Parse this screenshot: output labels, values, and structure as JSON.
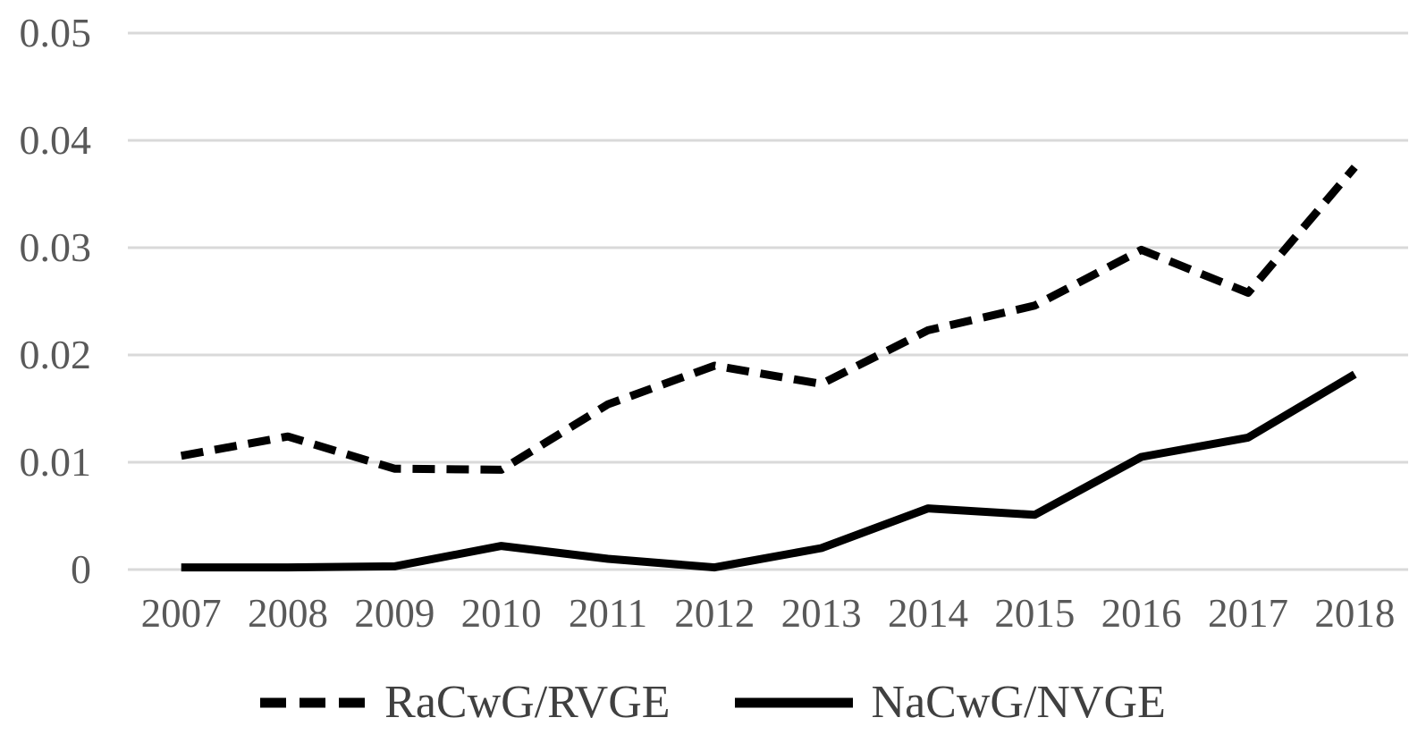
{
  "chart_data": {
    "type": "line",
    "categories": [
      "2007",
      "2008",
      "2009",
      "2010",
      "2011",
      "2012",
      "2013",
      "2014",
      "2015",
      "2016",
      "2017",
      "2018"
    ],
    "series": [
      {
        "name": "RaCwG/RVGE",
        "style": "dashed",
        "values": [
          0.0106,
          0.0124,
          0.0094,
          0.0093,
          0.0154,
          0.019,
          0.0173,
          0.0223,
          0.0246,
          0.0298,
          0.0258,
          0.0375
        ]
      },
      {
        "name": "NaCwG/NVGE",
        "style": "solid",
        "values": [
          0.0002,
          0.0002,
          0.0003,
          0.0022,
          0.001,
          0.0002,
          0.002,
          0.0057,
          0.0051,
          0.0105,
          0.0123,
          0.0182
        ]
      }
    ],
    "yticks": [
      {
        "value": 0.05,
        "label": "0.05"
      },
      {
        "value": 0.04,
        "label": "0.04"
      },
      {
        "value": 0.03,
        "label": "0.03"
      },
      {
        "value": 0.02,
        "label": "0.02"
      },
      {
        "value": 0.01,
        "label": "0.01"
      },
      {
        "value": 0,
        "label": "0"
      }
    ],
    "ylim": [
      0,
      0.05
    ],
    "grid": "horizontal",
    "legend_position": "bottom",
    "line_color": "#000000",
    "gridline_color": "#d9d9d9",
    "axis_label_color": "#595959",
    "legend_text_color": "#404040"
  }
}
